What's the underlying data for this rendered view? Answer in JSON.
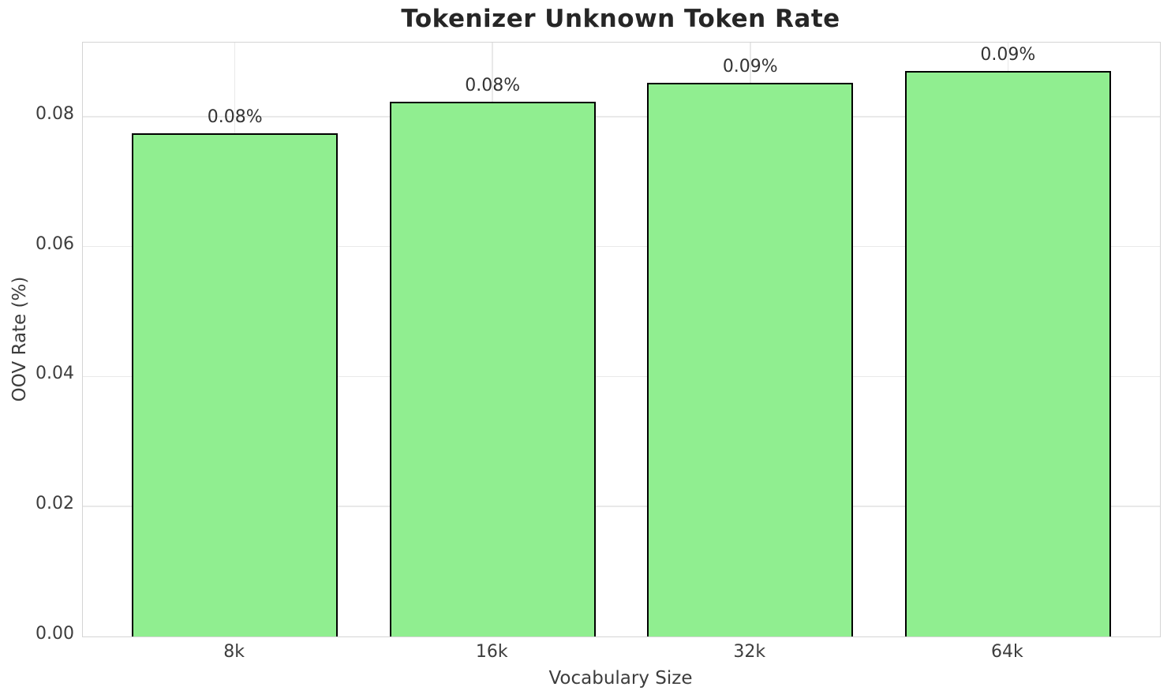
{
  "chart_data": {
    "type": "bar",
    "title": "Tokenizer Unknown Token Rate",
    "xlabel": "Vocabulary Size",
    "ylabel": "OOV Rate (%)",
    "categories": [
      "8k",
      "16k",
      "32k",
      "64k"
    ],
    "values": [
      0.0775,
      0.0823,
      0.0852,
      0.087
    ],
    "bar_labels": [
      "0.08%",
      "0.08%",
      "0.09%",
      "0.09%"
    ],
    "yticks": [
      {
        "value": 0.0,
        "label": "0.00"
      },
      {
        "value": 0.02,
        "label": "0.02"
      },
      {
        "value": 0.04,
        "label": "0.04"
      },
      {
        "value": 0.06,
        "label": "0.06"
      },
      {
        "value": 0.08,
        "label": "0.08"
      }
    ],
    "ylim": [
      0,
      0.0914
    ],
    "xlim": [
      -0.59,
      3.59
    ],
    "bar_width_units": 0.8,
    "grid": true,
    "legend": "none",
    "colors": {
      "bar_fill": "#90EE90",
      "bar_edge": "#000000",
      "grid": "#e9e9e9",
      "spine": "#d4d4d4",
      "title_text": "#262626",
      "tick_text": "#3d3d3d",
      "background": "#ffffff"
    }
  }
}
